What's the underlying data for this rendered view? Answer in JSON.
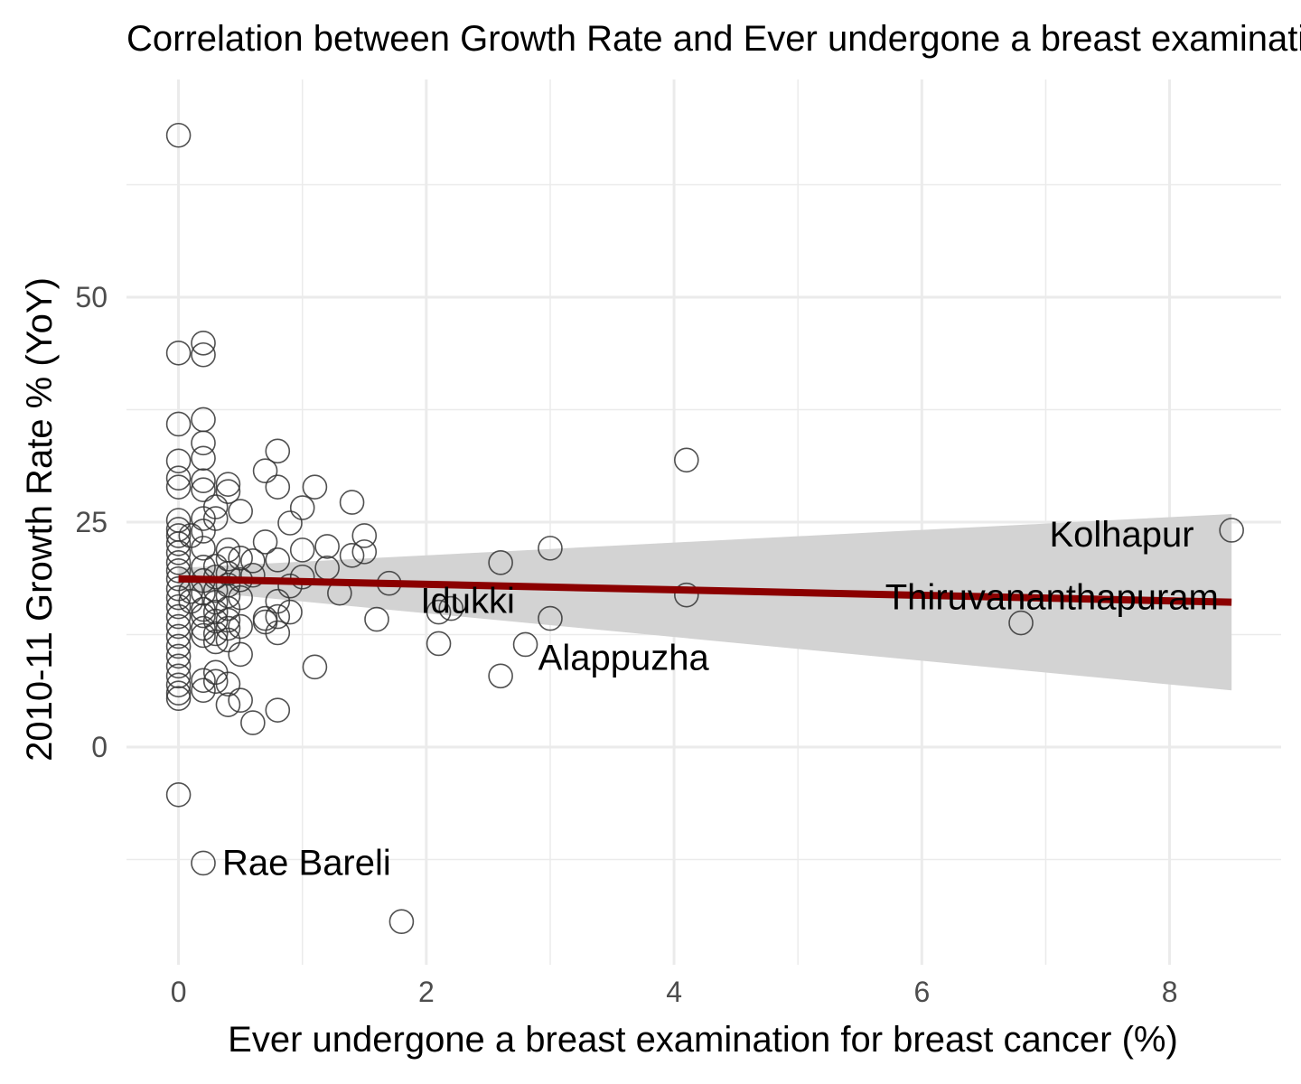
{
  "chart_data": {
    "type": "scatter",
    "title": "Correlation between Growth Rate and Ever undergone a breast examination for breast cancer (%)",
    "xlabel": "Ever undergone a breast examination for breast cancer (%)",
    "ylabel": "2010-11 Growth Rate % (YoY)",
    "xlim": [
      -0.42,
      8.9
    ],
    "ylim": [
      -24.2,
      74.2
    ],
    "x_ticks": [
      0,
      2,
      4,
      6,
      8
    ],
    "y_ticks": [
      0,
      25,
      50
    ],
    "x_minor": [
      1,
      3,
      5,
      7
    ],
    "y_minor": [
      -12.5,
      12.5,
      37.5,
      62.5
    ],
    "grid": true,
    "legend": "none",
    "colors": {
      "point_stroke": "#333333",
      "trend_line": "#8b0000",
      "ribbon": "#d3d3d3",
      "grid": "#ebebeb"
    },
    "trend": {
      "x": [
        0,
        8.5
      ],
      "y": [
        18.7,
        16.1
      ],
      "ci_upper": [
        19.9,
        25.9
      ],
      "ci_lower": [
        17.5,
        6.3
      ]
    },
    "labels": [
      {
        "text": "Rae Bareli",
        "x": 0.2,
        "y": -12.8,
        "anchor": "start"
      },
      {
        "text": "Idukki",
        "x": 1.8,
        "y": 16.3,
        "anchor": "start"
      },
      {
        "text": "Alappuzha",
        "x": 2.75,
        "y": 10.0,
        "anchor": "start"
      },
      {
        "text": "Kolhapur",
        "x": 8.35,
        "y": 23.7,
        "anchor": "end"
      },
      {
        "text": "Thiruvananthapuram",
        "x": 7.05,
        "y": 16.7,
        "anchor": "middle"
      }
    ],
    "points": [
      {
        "x": 0,
        "y": 68
      },
      {
        "x": 0,
        "y": 43.8
      },
      {
        "x": 0,
        "y": 35.9
      },
      {
        "x": 0,
        "y": 31.8
      },
      {
        "x": 0,
        "y": 29.9
      },
      {
        "x": 0,
        "y": 28.9
      },
      {
        "x": 0,
        "y": 25.2
      },
      {
        "x": 0,
        "y": 24.2
      },
      {
        "x": 0,
        "y": 23.5
      },
      {
        "x": 0,
        "y": 22.6
      },
      {
        "x": 0,
        "y": 21.6
      },
      {
        "x": 0,
        "y": 20.5
      },
      {
        "x": 0,
        "y": 19.6
      },
      {
        "x": 0,
        "y": 18.7
      },
      {
        "x": 0,
        "y": 17.6
      },
      {
        "x": 0,
        "y": 16.6
      },
      {
        "x": 0,
        "y": 15.6
      },
      {
        "x": 0,
        "y": 14.5
      },
      {
        "x": 0,
        "y": 13.4
      },
      {
        "x": 0,
        "y": 12.3
      },
      {
        "x": 0,
        "y": 11.2
      },
      {
        "x": 0,
        "y": 10.1
      },
      {
        "x": 0,
        "y": 9.0
      },
      {
        "x": 0,
        "y": 7.9
      },
      {
        "x": 0,
        "y": 6.9
      },
      {
        "x": 0,
        "y": 6.0
      },
      {
        "x": 0,
        "y": 5.4
      },
      {
        "x": 0,
        "y": -5.3
      },
      {
        "x": 0.1,
        "y": 23.5
      },
      {
        "x": 0.1,
        "y": 17.3
      },
      {
        "x": 0.1,
        "y": 16.2
      },
      {
        "x": 0.2,
        "y": 44.9
      },
      {
        "x": 0.2,
        "y": 43.6
      },
      {
        "x": 0.2,
        "y": 36.4
      },
      {
        "x": 0.2,
        "y": 33.8
      },
      {
        "x": 0.2,
        "y": 32.1
      },
      {
        "x": 0.2,
        "y": 29.6
      },
      {
        "x": 0.2,
        "y": 28.6
      },
      {
        "x": 0.2,
        "y": 25.4
      },
      {
        "x": 0.2,
        "y": 24.0
      },
      {
        "x": 0.2,
        "y": 22.1
      },
      {
        "x": 0.2,
        "y": 20.0
      },
      {
        "x": 0.2,
        "y": 18.5
      },
      {
        "x": 0.2,
        "y": 17.1
      },
      {
        "x": 0.2,
        "y": 15.3
      },
      {
        "x": 0.2,
        "y": 14.6
      },
      {
        "x": 0.2,
        "y": 13.2
      },
      {
        "x": 0.2,
        "y": 12.4
      },
      {
        "x": 0.2,
        "y": 7.4
      },
      {
        "x": 0.2,
        "y": 6.3
      },
      {
        "x": 0.2,
        "y": -12.9
      },
      {
        "x": 0.3,
        "y": 26.7
      },
      {
        "x": 0.3,
        "y": 25.4
      },
      {
        "x": 0.3,
        "y": 20.1
      },
      {
        "x": 0.3,
        "y": 18.9
      },
      {
        "x": 0.3,
        "y": 17.4
      },
      {
        "x": 0.3,
        "y": 16.1
      },
      {
        "x": 0.3,
        "y": 15.0
      },
      {
        "x": 0.3,
        "y": 14.0
      },
      {
        "x": 0.3,
        "y": 12.6
      },
      {
        "x": 0.3,
        "y": 11.7
      },
      {
        "x": 0.3,
        "y": 8.3
      },
      {
        "x": 0.3,
        "y": 7.3
      },
      {
        "x": 0.4,
        "y": 29.2
      },
      {
        "x": 0.4,
        "y": 28.4
      },
      {
        "x": 0.4,
        "y": 21.9
      },
      {
        "x": 0.4,
        "y": 20.9
      },
      {
        "x": 0.4,
        "y": 19.3
      },
      {
        "x": 0.4,
        "y": 18.0
      },
      {
        "x": 0.4,
        "y": 16.8
      },
      {
        "x": 0.4,
        "y": 15.4
      },
      {
        "x": 0.4,
        "y": 14.1
      },
      {
        "x": 0.4,
        "y": 13.2
      },
      {
        "x": 0.4,
        "y": 11.9
      },
      {
        "x": 0.4,
        "y": 7.0
      },
      {
        "x": 0.4,
        "y": 4.7
      },
      {
        "x": 0.5,
        "y": 26.2
      },
      {
        "x": 0.5,
        "y": 21.0
      },
      {
        "x": 0.5,
        "y": 18.6
      },
      {
        "x": 0.5,
        "y": 16.6
      },
      {
        "x": 0.5,
        "y": 13.4
      },
      {
        "x": 0.5,
        "y": 10.3
      },
      {
        "x": 0.5,
        "y": 5.2
      },
      {
        "x": 0.6,
        "y": 20.7
      },
      {
        "x": 0.6,
        "y": 19.1
      },
      {
        "x": 0.6,
        "y": 2.7
      },
      {
        "x": 0.7,
        "y": 30.7
      },
      {
        "x": 0.7,
        "y": 22.8
      },
      {
        "x": 0.7,
        "y": 14.3
      },
      {
        "x": 0.7,
        "y": 13.9
      },
      {
        "x": 0.8,
        "y": 32.9
      },
      {
        "x": 0.8,
        "y": 28.9
      },
      {
        "x": 0.8,
        "y": 20.8
      },
      {
        "x": 0.8,
        "y": 16.2
      },
      {
        "x": 0.8,
        "y": 14.5
      },
      {
        "x": 0.8,
        "y": 12.7
      },
      {
        "x": 0.8,
        "y": 4.1
      },
      {
        "x": 0.9,
        "y": 24.9
      },
      {
        "x": 0.9,
        "y": 17.9
      },
      {
        "x": 0.9,
        "y": 15.0
      },
      {
        "x": 1.0,
        "y": 26.6
      },
      {
        "x": 1.0,
        "y": 21.9
      },
      {
        "x": 1.0,
        "y": 18.9
      },
      {
        "x": 1.1,
        "y": 28.9
      },
      {
        "x": 1.1,
        "y": 8.9
      },
      {
        "x": 1.2,
        "y": 22.3
      },
      {
        "x": 1.2,
        "y": 19.9
      },
      {
        "x": 1.3,
        "y": 17.1
      },
      {
        "x": 1.4,
        "y": 27.2
      },
      {
        "x": 1.4,
        "y": 21.3
      },
      {
        "x": 1.5,
        "y": 23.5
      },
      {
        "x": 1.5,
        "y": 21.7
      },
      {
        "x": 1.6,
        "y": 14.2
      },
      {
        "x": 1.7,
        "y": 18.2
      },
      {
        "x": 1.8,
        "y": -19.4
      },
      {
        "x": 2.1,
        "y": 15.0
      },
      {
        "x": 2.1,
        "y": 11.5
      },
      {
        "x": 2.2,
        "y": 15.4
      },
      {
        "x": 2.6,
        "y": 20.5
      },
      {
        "x": 2.6,
        "y": 7.9
      },
      {
        "x": 2.8,
        "y": 11.4
      },
      {
        "x": 3.0,
        "y": 22.1
      },
      {
        "x": 3.0,
        "y": 14.3
      },
      {
        "x": 4.1,
        "y": 31.9
      },
      {
        "x": 4.1,
        "y": 16.9
      },
      {
        "x": 6.8,
        "y": 13.8
      },
      {
        "x": 8.5,
        "y": 24.1
      }
    ]
  }
}
